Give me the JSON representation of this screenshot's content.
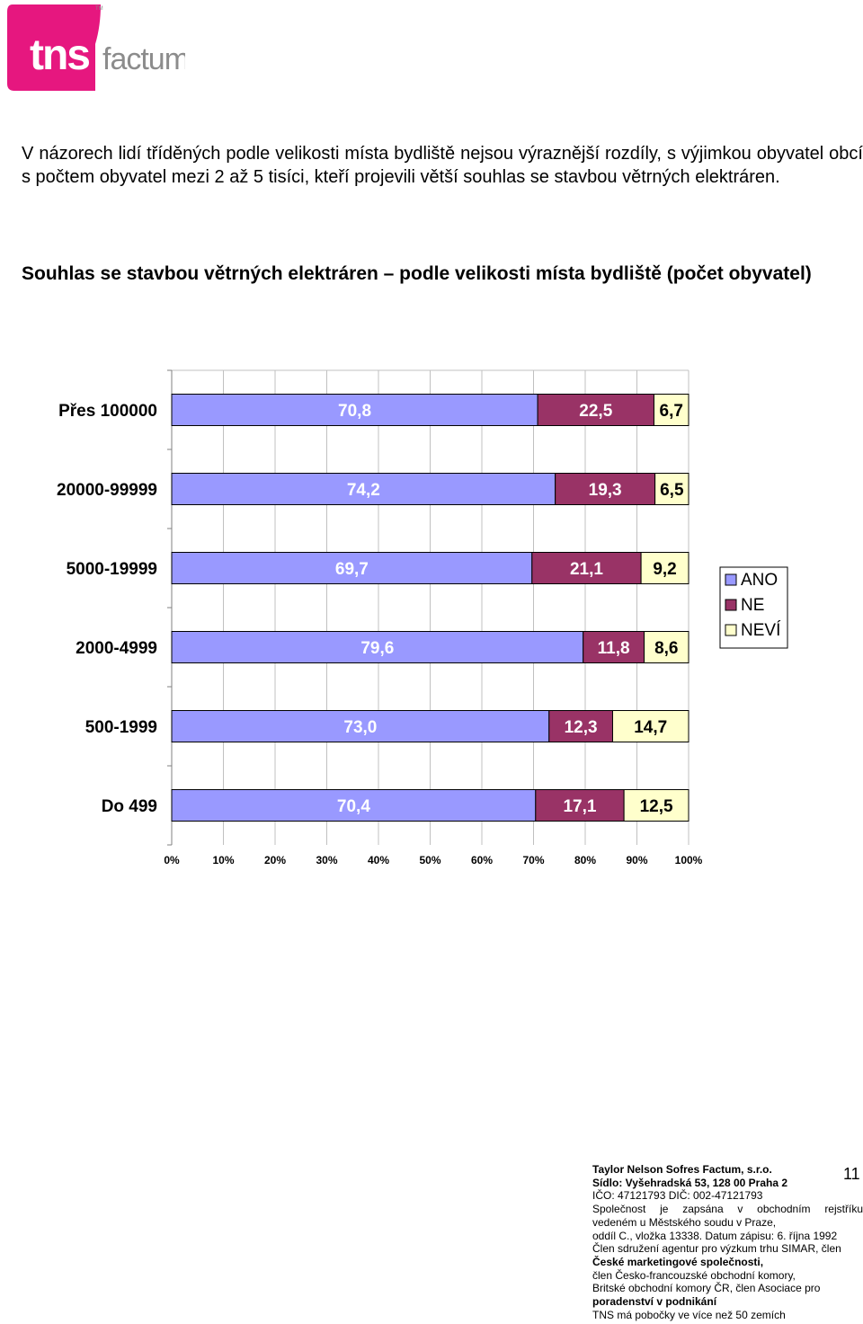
{
  "logo": {
    "mark": "tns",
    "text": "factum",
    "tm": "TM",
    "color": "#e6177f"
  },
  "intro_text": "V názorech lidí tříděných podle velikosti místa bydliště nejsou výraznější rozdíly, s výjimkou obyvatel obcí s počtem obyvatel mezi 2 až 5 tisíci, kteří projevili větší souhlas se stavbou větrných elektráren.",
  "chart_title": "Souhlas se stavbou větrných elektráren – podle velikosti místa bydliště (počet obyvatel)",
  "chart_data": {
    "type": "bar",
    "orientation": "horizontal",
    "stacked": "percent",
    "title": "",
    "xlabel": "",
    "ylabel": "",
    "categories": [
      "Přes 100000",
      "20000-99999",
      "5000-19999",
      "2000-4999",
      "500-1999",
      "Do 499"
    ],
    "series": [
      {
        "name": "ANO",
        "color": "#9999ff",
        "values": [
          70.8,
          74.2,
          69.7,
          79.6,
          73.0,
          70.4
        ],
        "labels": [
          "70,8",
          "74,2",
          "69,7",
          "79,6",
          "73,0",
          "70,4"
        ]
      },
      {
        "name": "NE",
        "color": "#993366",
        "values": [
          22.5,
          19.3,
          21.1,
          11.8,
          12.3,
          17.1
        ],
        "labels": [
          "22,5",
          "19,3",
          "21,1",
          "11,8",
          "12,3",
          "17,1"
        ]
      },
      {
        "name": "NEVÍ",
        "color": "#ffffcc",
        "values": [
          6.7,
          6.5,
          9.2,
          8.6,
          14.7,
          12.5
        ],
        "labels": [
          "6,7",
          "6,5",
          "9,2",
          "8,6",
          "14,7",
          "12,5"
        ]
      }
    ],
    "xlim": [
      0,
      100
    ],
    "xticks": [
      "0%",
      "10%",
      "20%",
      "30%",
      "40%",
      "50%",
      "60%",
      "70%",
      "80%",
      "90%",
      "100%"
    ],
    "grid": true,
    "legend": "right"
  },
  "footer": {
    "lines": [
      "Taylor Nelson Sofres Factum, s.r.o.",
      "Sídlo: Vyšehradská 53, 128 00  Praha 2",
      "IČO: 47121793   DIČ: 002-47121793",
      "Společnost je zapsána v obchodním rejstříku",
      "vedeném u Městského soudu v Praze,",
      "oddíl C., vložka 13338. Datum zápisu: 6. října 1992",
      "Člen sdružení agentur pro výzkum trhu SIMAR, člen",
      "České marketingové společnosti,",
      "člen Česko-francouzské obchodní komory,",
      "Britské obchodní komory ČR, člen Asociace pro",
      "poradenství v podnikání",
      "TNS má pobočky ve více než 50 zemích"
    ],
    "page_number": "11"
  }
}
